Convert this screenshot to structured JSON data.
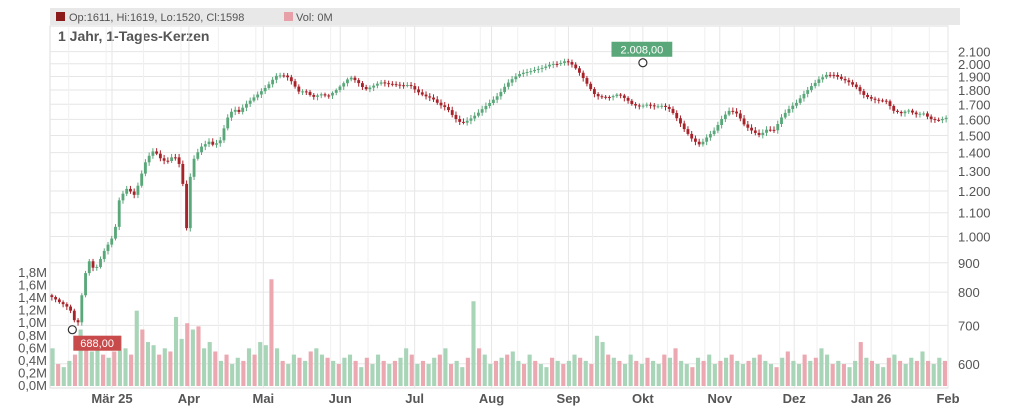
{
  "legend": {
    "ohlc_label": "Op:1611, Hi:1619, Lo:1520, Cl:1598",
    "vol_label": "Vol: 0M",
    "ohlc_color": "#8b1a1a",
    "vol_color": "#e8a0a8"
  },
  "chart_data": {
    "type": "candlestick",
    "title": "1 Jahr, 1-Tages-Kerzen",
    "price_axis": {
      "scale": "log",
      "min": 560,
      "max": 2200,
      "ticks": [
        600,
        700,
        800,
        900,
        1000,
        1100,
        1200,
        1300,
        1400,
        1500,
        1600,
        1700,
        1800,
        1900,
        2000,
        2100
      ],
      "tick_labels": [
        "600",
        "700",
        "800",
        "900",
        "1.000",
        "1.100",
        "1.200",
        "1.300",
        "1.400",
        "1.500",
        "1.600",
        "1.700",
        "1.800",
        "1.900",
        "2.000",
        "2.100"
      ]
    },
    "volume_axis": {
      "min": 0,
      "max": 1.8,
      "unit": "M",
      "ticks": [
        0,
        0.2,
        0.4,
        0.6,
        0.8,
        1.0,
        1.2,
        1.4,
        1.6,
        1.8
      ],
      "tick_labels": [
        "0,0M",
        "0,2M",
        "0,4M",
        "0,6M",
        "0,8M",
        "1,0M",
        "1,2M",
        "1,4M",
        "1,6M",
        "1,8M"
      ]
    },
    "x_axis": {
      "ticks": [
        {
          "label": "Mär 25",
          "day": 25
        },
        {
          "label": "Apr",
          "day": 56
        },
        {
          "label": "Mai",
          "day": 86
        },
        {
          "label": "Jun",
          "day": 117
        },
        {
          "label": "Jul",
          "day": 147
        },
        {
          "label": "Aug",
          "day": 178
        },
        {
          "label": "Sep",
          "day": 209
        },
        {
          "label": "Okt",
          "day": 239
        },
        {
          "label": "Nov",
          "day": 270
        },
        {
          "label": "Dez",
          "day": 300
        },
        {
          "label": "Jan 26",
          "day": 331
        },
        {
          "label": "Feb",
          "day": 362
        }
      ],
      "min_day": 0,
      "max_day": 362
    },
    "annotations": [
      {
        "label": "688,00",
        "kind": "low",
        "day": 9,
        "price": 688
      },
      {
        "label": "2.008,00",
        "kind": "high",
        "day": 239,
        "price": 2008
      }
    ],
    "close_path": [
      [
        0,
        790
      ],
      [
        4,
        760
      ],
      [
        8,
        740
      ],
      [
        11,
        690
      ],
      [
        12,
        745
      ],
      [
        14,
        860
      ],
      [
        16,
        920
      ],
      [
        18,
        880
      ],
      [
        22,
        950
      ],
      [
        26,
        1000
      ],
      [
        28,
        1150
      ],
      [
        31,
        1200
      ],
      [
        34,
        1180
      ],
      [
        36,
        1250
      ],
      [
        38,
        1350
      ],
      [
        40,
        1400
      ],
      [
        42,
        1430
      ],
      [
        44,
        1380
      ],
      [
        47,
        1340
      ],
      [
        50,
        1370
      ],
      [
        53,
        1300
      ],
      [
        55,
        1020
      ],
      [
        57,
        1340
      ],
      [
        59,
        1400
      ],
      [
        61,
        1450
      ],
      [
        64,
        1480
      ],
      [
        66,
        1450
      ],
      [
        69,
        1470
      ],
      [
        71,
        1580
      ],
      [
        74,
        1650
      ],
      [
        76,
        1630
      ],
      [
        79,
        1700
      ],
      [
        82,
        1760
      ],
      [
        85,
        1810
      ],
      [
        88,
        1850
      ],
      [
        91,
        1900
      ],
      [
        94,
        1890
      ],
      [
        96,
        1870
      ],
      [
        98,
        1830
      ],
      [
        100,
        1780
      ],
      [
        103,
        1800
      ],
      [
        106,
        1770
      ],
      [
        109,
        1790
      ],
      [
        112,
        1760
      ],
      [
        115,
        1780
      ],
      [
        118,
        1820
      ],
      [
        121,
        1880
      ],
      [
        124,
        1860
      ],
      [
        127,
        1820
      ],
      [
        130,
        1850
      ],
      [
        133,
        1870
      ],
      [
        136,
        1840
      ],
      [
        139,
        1820
      ],
      [
        142,
        1810
      ],
      [
        145,
        1830
      ],
      [
        148,
        1800
      ],
      [
        151,
        1780
      ],
      [
        154,
        1760
      ],
      [
        157,
        1700
      ],
      [
        160,
        1660
      ],
      [
        163,
        1590
      ],
      [
        166,
        1560
      ],
      [
        169,
        1600
      ],
      [
        172,
        1650
      ],
      [
        175,
        1700
      ],
      [
        178,
        1730
      ],
      [
        181,
        1760
      ],
      [
        184,
        1820
      ],
      [
        187,
        1870
      ],
      [
        190,
        1920
      ],
      [
        193,
        1950
      ],
      [
        196,
        1980
      ],
      [
        199,
        1990
      ],
      [
        202,
        2000
      ],
      [
        205,
        1980
      ],
      [
        208,
        2000
      ],
      [
        211,
        1970
      ],
      [
        214,
        1920
      ],
      [
        217,
        1850
      ],
      [
        220,
        1780
      ],
      [
        223,
        1760
      ],
      [
        226,
        1740
      ],
      [
        229,
        1750
      ],
      [
        232,
        1720
      ],
      [
        235,
        1690
      ],
      [
        238,
        1700
      ],
      [
        241,
        1720
      ],
      [
        244,
        1700
      ],
      [
        247,
        1690
      ],
      [
        250,
        1650
      ],
      [
        253,
        1580
      ],
      [
        256,
        1520
      ],
      [
        259,
        1480
      ],
      [
        262,
        1460
      ],
      [
        265,
        1510
      ],
      [
        268,
        1540
      ],
      [
        271,
        1600
      ],
      [
        274,
        1640
      ],
      [
        277,
        1620
      ],
      [
        280,
        1560
      ],
      [
        283,
        1540
      ],
      [
        286,
        1520
      ],
      [
        289,
        1550
      ],
      [
        292,
        1530
      ],
      [
        295,
        1600
      ],
      [
        298,
        1650
      ],
      [
        301,
        1700
      ],
      [
        304,
        1780
      ],
      [
        307,
        1850
      ],
      [
        310,
        1900
      ],
      [
        313,
        1920
      ],
      [
        316,
        1900
      ],
      [
        319,
        1860
      ],
      [
        322,
        1840
      ],
      [
        325,
        1820
      ],
      [
        328,
        1780
      ],
      [
        331,
        1760
      ],
      [
        334,
        1740
      ],
      [
        337,
        1720
      ],
      [
        340,
        1640
      ],
      [
        343,
        1620
      ],
      [
        346,
        1650
      ],
      [
        349,
        1640
      ],
      [
        352,
        1660
      ],
      [
        355,
        1620
      ],
      [
        358,
        1598
      ],
      [
        362,
        1598
      ]
    ],
    "volume_bars": [
      0.6,
      0.35,
      0.3,
      0.4,
      0.5,
      0.9,
      0.7,
      0.55,
      0.6,
      0.5,
      0.45,
      0.55,
      0.8,
      0.6,
      0.5,
      1.2,
      0.9,
      0.7,
      0.65,
      0.5,
      0.6,
      0.55,
      1.1,
      0.75,
      1.0,
      0.9,
      0.95,
      0.6,
      0.7,
      0.55,
      0.4,
      0.5,
      0.35,
      0.45,
      0.4,
      0.6,
      0.5,
      0.7,
      0.65,
      1.7,
      0.6,
      0.4,
      0.35,
      0.5,
      0.45,
      0.4,
      0.55,
      0.6,
      0.5,
      0.45,
      0.4,
      0.35,
      0.45,
      0.5,
      0.4,
      0.3,
      0.45,
      0.35,
      0.5,
      0.4,
      0.35,
      0.4,
      0.45,
      0.6,
      0.5,
      0.35,
      0.4,
      0.35,
      0.45,
      0.5,
      0.6,
      0.35,
      0.4,
      0.3,
      0.45,
      1.35,
      0.6,
      0.5,
      0.35,
      0.4,
      0.45,
      0.5,
      0.55,
      0.4,
      0.35,
      0.5,
      0.4,
      0.35,
      0.3,
      0.45,
      0.4,
      0.35,
      0.4,
      0.5,
      0.45,
      0.4,
      0.35,
      0.8,
      0.7,
      0.5,
      0.45,
      0.4,
      0.35,
      0.5,
      0.4,
      0.35,
      0.45,
      0.4,
      0.35,
      0.5,
      0.45,
      0.6,
      0.4,
      0.35,
      0.3,
      0.45,
      0.4,
      0.5,
      0.35,
      0.4,
      0.45,
      0.5,
      0.4,
      0.35,
      0.4,
      0.45,
      0.5,
      0.4,
      0.35,
      0.3,
      0.45,
      0.55,
      0.4,
      0.35,
      0.5,
      0.4,
      0.45,
      0.6,
      0.5,
      0.35,
      0.4,
      0.35,
      0.3,
      0.4,
      0.7,
      0.45,
      0.4,
      0.35,
      0.3,
      0.45,
      0.5,
      0.4,
      0.35,
      0.45,
      0.4,
      0.55,
      0.4,
      0.35,
      0.45,
      0.4
    ],
    "colors": {
      "up": "#5aa87a",
      "down": "#a8222a",
      "vol_up": "#a8d4b8",
      "vol_down": "#eba8b0",
      "grid": "#e6e6e6",
      "callout_high": "#5aa87a",
      "callout_low": "#c84a4a"
    },
    "grid": true
  }
}
